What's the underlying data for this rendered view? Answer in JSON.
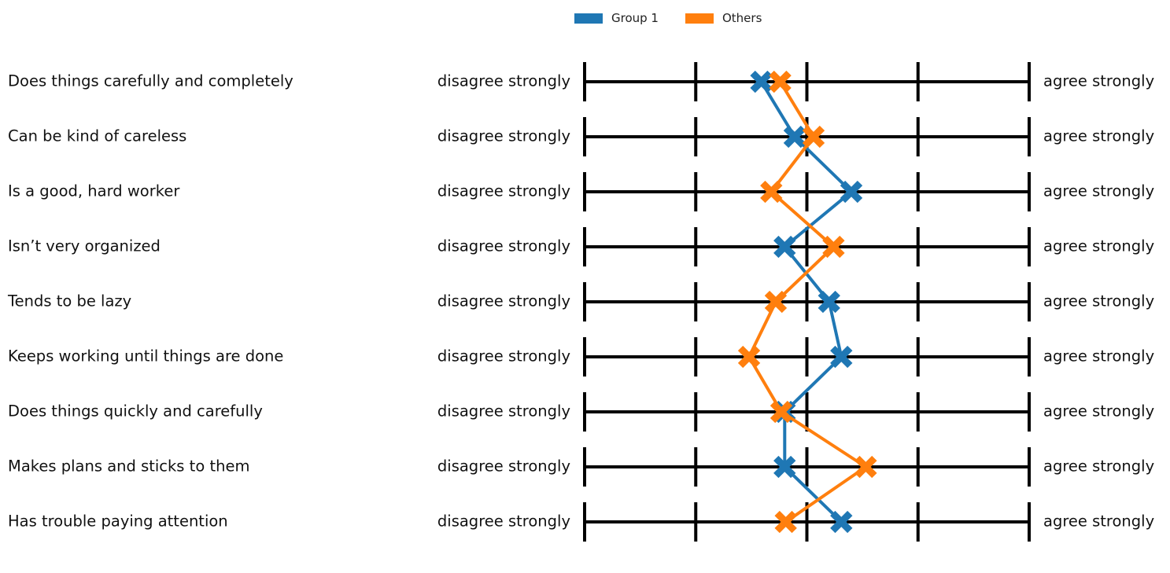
{
  "chart_data": {
    "type": "line",
    "title": "",
    "orientation": "horizontal-scales",
    "scale_min_label": "disagree strongly",
    "scale_max_label": "agree strongly",
    "scale_points": 5,
    "xlim": [
      1,
      5
    ],
    "items": [
      "Does things carefully and completely",
      "Can be kind of careless",
      "Is a good, hard worker",
      "Isn’t very organized",
      "Tends to be lazy",
      "Keeps working until things are done",
      "Does things quickly and carefully",
      "Makes plans and sticks to them",
      "Has trouble paying attention"
    ],
    "series": [
      {
        "name": "Group 1",
        "color": "#1f77b4",
        "marker": "X",
        "values": [
          2.59,
          2.89,
          3.4,
          2.8,
          3.2,
          3.31,
          2.8,
          2.8,
          3.31
        ]
      },
      {
        "name": "Others",
        "color": "#ff7f0e",
        "marker": "X",
        "values": [
          2.76,
          3.06,
          2.68,
          3.24,
          2.72,
          2.48,
          2.77,
          3.53,
          2.81
        ]
      }
    ],
    "legend_position": "top-center",
    "grid": false
  }
}
